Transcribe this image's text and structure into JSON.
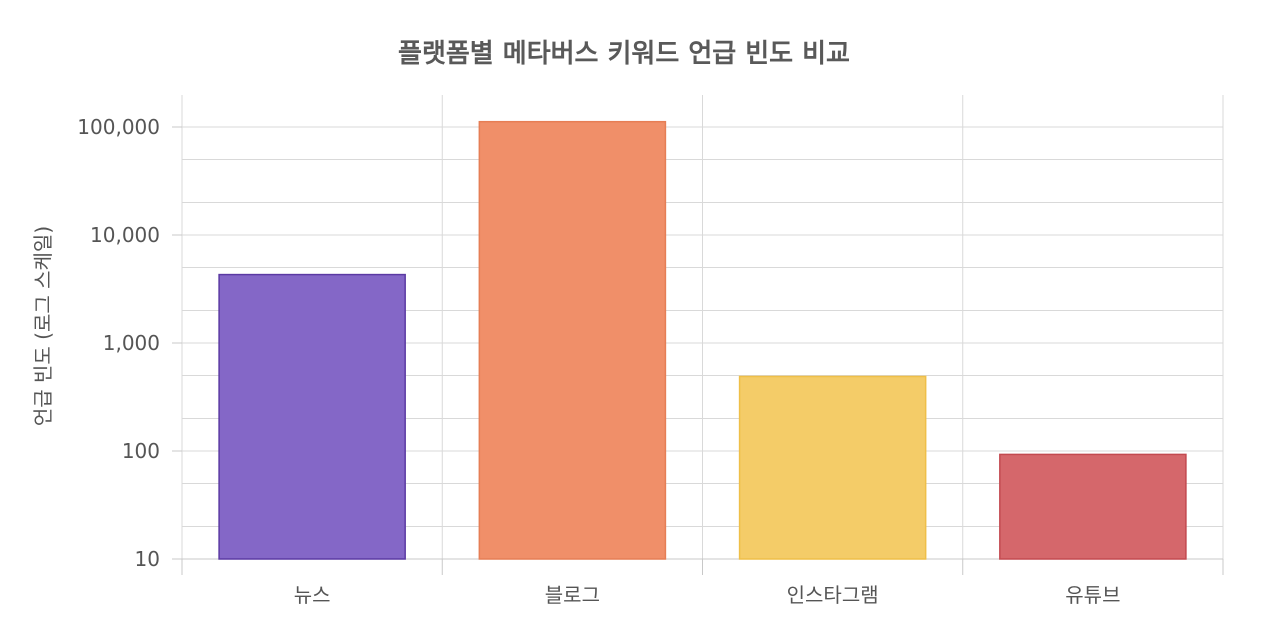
{
  "chart_data": {
    "type": "bar",
    "title": "플랫폼별 메타버스 키워드 언급 빈도 비교",
    "xlabel": "",
    "ylabel": "언급 빈도 (로그 스케일)",
    "yscale": "log",
    "ylim": [
      10,
      200000
    ],
    "yticks": [
      10,
      100,
      1000,
      10000,
      100000
    ],
    "ytick_labels": [
      "10",
      "100",
      "1,000",
      "10,000",
      "100,000"
    ],
    "categories": [
      "뉴스",
      "블로그",
      "인스타그램",
      "유튜브"
    ],
    "values": [
      4300,
      112000,
      490,
      93
    ],
    "colors": [
      "#8467c7",
      "#f08f69",
      "#f4cc68",
      "#d5676b"
    ],
    "border_colors": [
      "#5b3aa3",
      "#e67e55",
      "#efbf48",
      "#c34a50"
    ],
    "grid": true
  }
}
